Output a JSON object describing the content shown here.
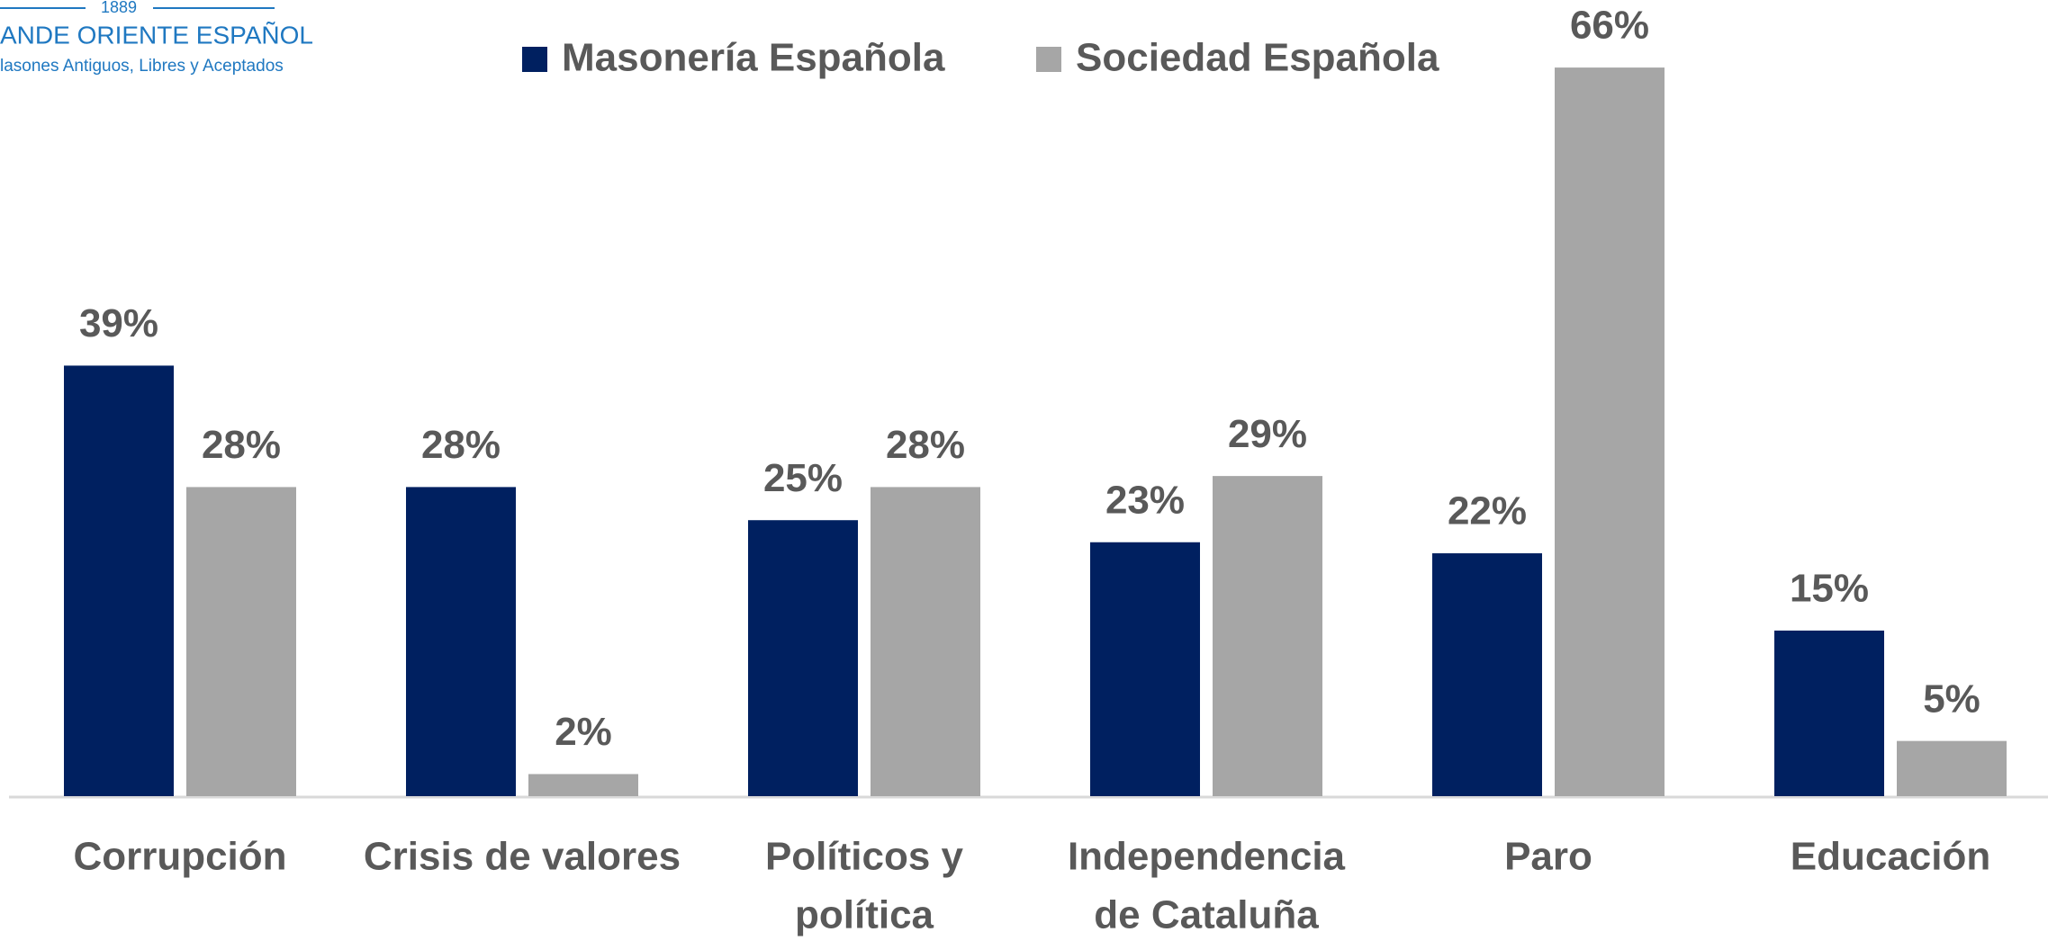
{
  "logo": {
    "year": "1889",
    "name": "ANDE ORIENTE ESPAÑOL",
    "motto": "lasones Antiguos, Libres y Aceptados"
  },
  "chart_data": {
    "type": "bar",
    "categories": [
      [
        "Corrupción"
      ],
      [
        "Crisis de valores"
      ],
      [
        "Políticos y",
        "política"
      ],
      [
        "Independencia",
        "de Cataluña"
      ],
      [
        "Paro"
      ],
      [
        "Educación"
      ]
    ],
    "series": [
      {
        "name": "Masonería Española",
        "color": "#002060",
        "values": [
          39,
          28,
          25,
          23,
          22,
          15
        ],
        "value_labels": [
          "39%",
          "28%",
          "25%",
          "23%",
          "22%",
          "15%"
        ]
      },
      {
        "name": "Sociedad Española",
        "color": "#a6a6a6",
        "values": [
          28,
          2,
          28,
          29,
          66,
          5
        ],
        "value_labels": [
          "28%",
          "2%",
          "28%",
          "29%",
          "66%",
          "5%"
        ]
      }
    ],
    "ylim": [
      0,
      70
    ],
    "grid": false,
    "legend": "top"
  }
}
